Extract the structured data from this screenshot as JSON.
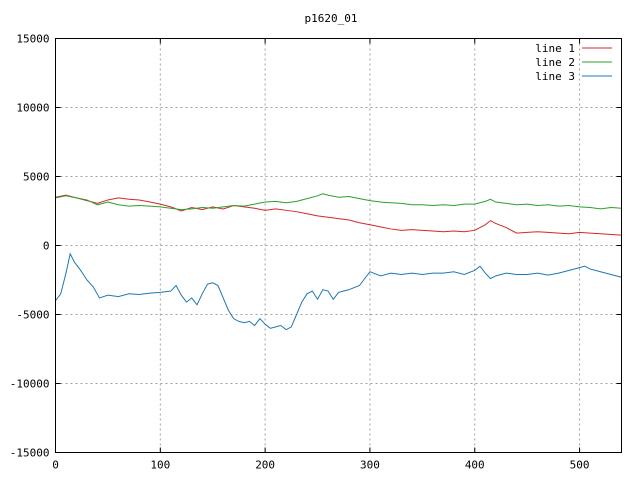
{
  "chart_data": {
    "type": "line",
    "title": "p1620_01",
    "xlabel": "",
    "ylabel": "",
    "xlim": [
      0,
      540
    ],
    "ylim": [
      -15000,
      15000
    ],
    "xticks": [
      0,
      100,
      200,
      300,
      400,
      500
    ],
    "yticks": [
      -15000,
      -10000,
      -5000,
      0,
      5000,
      10000,
      15000
    ],
    "grid": true,
    "legend_position": "top-right",
    "series": [
      {
        "name": "line 1",
        "color": "#d62728",
        "points": [
          [
            0,
            3500
          ],
          [
            10,
            3650
          ],
          [
            20,
            3450
          ],
          [
            30,
            3250
          ],
          [
            40,
            3050
          ],
          [
            50,
            3300
          ],
          [
            60,
            3450
          ],
          [
            70,
            3350
          ],
          [
            80,
            3300
          ],
          [
            90,
            3150
          ],
          [
            100,
            3000
          ],
          [
            110,
            2800
          ],
          [
            120,
            2500
          ],
          [
            130,
            2750
          ],
          [
            140,
            2600
          ],
          [
            150,
            2800
          ],
          [
            160,
            2650
          ],
          [
            170,
            2900
          ],
          [
            180,
            2800
          ],
          [
            190,
            2700
          ],
          [
            200,
            2550
          ],
          [
            210,
            2650
          ],
          [
            220,
            2550
          ],
          [
            230,
            2450
          ],
          [
            240,
            2300
          ],
          [
            250,
            2150
          ],
          [
            260,
            2050
          ],
          [
            270,
            1950
          ],
          [
            280,
            1850
          ],
          [
            290,
            1650
          ],
          [
            300,
            1500
          ],
          [
            310,
            1350
          ],
          [
            320,
            1200
          ],
          [
            330,
            1100
          ],
          [
            340,
            1150
          ],
          [
            350,
            1100
          ],
          [
            360,
            1050
          ],
          [
            370,
            1000
          ],
          [
            380,
            1050
          ],
          [
            390,
            1000
          ],
          [
            400,
            1100
          ],
          [
            410,
            1500
          ],
          [
            415,
            1800
          ],
          [
            420,
            1600
          ],
          [
            430,
            1300
          ],
          [
            440,
            900
          ],
          [
            450,
            950
          ],
          [
            460,
            1000
          ],
          [
            470,
            950
          ],
          [
            480,
            900
          ],
          [
            490,
            850
          ],
          [
            500,
            950
          ],
          [
            510,
            900
          ],
          [
            520,
            850
          ],
          [
            530,
            800
          ],
          [
            540,
            750
          ]
        ]
      },
      {
        "name": "line 2",
        "color": "#2ca02c",
        "points": [
          [
            0,
            3450
          ],
          [
            10,
            3600
          ],
          [
            20,
            3450
          ],
          [
            30,
            3300
          ],
          [
            40,
            2950
          ],
          [
            50,
            3150
          ],
          [
            60,
            2950
          ],
          [
            70,
            2850
          ],
          [
            80,
            2900
          ],
          [
            90,
            2850
          ],
          [
            100,
            2800
          ],
          [
            110,
            2700
          ],
          [
            120,
            2600
          ],
          [
            130,
            2650
          ],
          [
            140,
            2750
          ],
          [
            150,
            2700
          ],
          [
            160,
            2800
          ],
          [
            170,
            2900
          ],
          [
            180,
            2850
          ],
          [
            190,
            3000
          ],
          [
            200,
            3150
          ],
          [
            210,
            3200
          ],
          [
            220,
            3100
          ],
          [
            230,
            3200
          ],
          [
            240,
            3400
          ],
          [
            250,
            3600
          ],
          [
            255,
            3750
          ],
          [
            260,
            3650
          ],
          [
            270,
            3500
          ],
          [
            280,
            3550
          ],
          [
            290,
            3400
          ],
          [
            300,
            3250
          ],
          [
            310,
            3150
          ],
          [
            320,
            3100
          ],
          [
            330,
            3050
          ],
          [
            340,
            2950
          ],
          [
            350,
            2950
          ],
          [
            360,
            2900
          ],
          [
            370,
            2950
          ],
          [
            380,
            2900
          ],
          [
            390,
            3000
          ],
          [
            400,
            3000
          ],
          [
            410,
            3200
          ],
          [
            415,
            3350
          ],
          [
            420,
            3150
          ],
          [
            430,
            3050
          ],
          [
            440,
            2950
          ],
          [
            450,
            3000
          ],
          [
            460,
            2900
          ],
          [
            470,
            2950
          ],
          [
            480,
            2850
          ],
          [
            490,
            2900
          ],
          [
            500,
            2800
          ],
          [
            510,
            2750
          ],
          [
            520,
            2650
          ],
          [
            530,
            2750
          ],
          [
            540,
            2700
          ]
        ]
      },
      {
        "name": "line 3",
        "color": "#1f77b4",
        "points": [
          [
            0,
            -4000
          ],
          [
            5,
            -3500
          ],
          [
            10,
            -2000
          ],
          [
            14,
            -600
          ],
          [
            18,
            -1200
          ],
          [
            24,
            -1800
          ],
          [
            30,
            -2500
          ],
          [
            36,
            -3000
          ],
          [
            42,
            -3800
          ],
          [
            50,
            -3600
          ],
          [
            60,
            -3700
          ],
          [
            70,
            -3500
          ],
          [
            80,
            -3550
          ],
          [
            90,
            -3450
          ],
          [
            100,
            -3400
          ],
          [
            110,
            -3300
          ],
          [
            115,
            -2900
          ],
          [
            120,
            -3600
          ],
          [
            125,
            -4100
          ],
          [
            130,
            -3800
          ],
          [
            135,
            -4300
          ],
          [
            140,
            -3500
          ],
          [
            145,
            -2800
          ],
          [
            150,
            -2700
          ],
          [
            155,
            -2900
          ],
          [
            160,
            -3800
          ],
          [
            165,
            -4700
          ],
          [
            170,
            -5300
          ],
          [
            175,
            -5500
          ],
          [
            180,
            -5600
          ],
          [
            185,
            -5500
          ],
          [
            190,
            -5800
          ],
          [
            195,
            -5300
          ],
          [
            200,
            -5700
          ],
          [
            205,
            -6000
          ],
          [
            210,
            -5900
          ],
          [
            215,
            -5800
          ],
          [
            220,
            -6100
          ],
          [
            225,
            -5900
          ],
          [
            230,
            -5000
          ],
          [
            235,
            -4100
          ],
          [
            240,
            -3500
          ],
          [
            245,
            -3300
          ],
          [
            250,
            -3900
          ],
          [
            255,
            -3200
          ],
          [
            260,
            -3300
          ],
          [
            265,
            -3900
          ],
          [
            270,
            -3400
          ],
          [
            280,
            -3200
          ],
          [
            290,
            -2900
          ],
          [
            295,
            -2400
          ],
          [
            300,
            -1900
          ],
          [
            310,
            -2200
          ],
          [
            320,
            -2000
          ],
          [
            330,
            -2100
          ],
          [
            340,
            -2000
          ],
          [
            350,
            -2100
          ],
          [
            360,
            -2000
          ],
          [
            370,
            -2000
          ],
          [
            380,
            -1900
          ],
          [
            390,
            -2100
          ],
          [
            400,
            -1800
          ],
          [
            405,
            -1500
          ],
          [
            410,
            -2000
          ],
          [
            415,
            -2400
          ],
          [
            420,
            -2200
          ],
          [
            430,
            -2000
          ],
          [
            440,
            -2100
          ],
          [
            450,
            -2100
          ],
          [
            460,
            -2000
          ],
          [
            470,
            -2150
          ],
          [
            480,
            -2000
          ],
          [
            490,
            -1800
          ],
          [
            500,
            -1600
          ],
          [
            505,
            -1500
          ],
          [
            510,
            -1700
          ],
          [
            520,
            -1900
          ],
          [
            530,
            -2100
          ],
          [
            540,
            -2300
          ]
        ]
      }
    ]
  }
}
